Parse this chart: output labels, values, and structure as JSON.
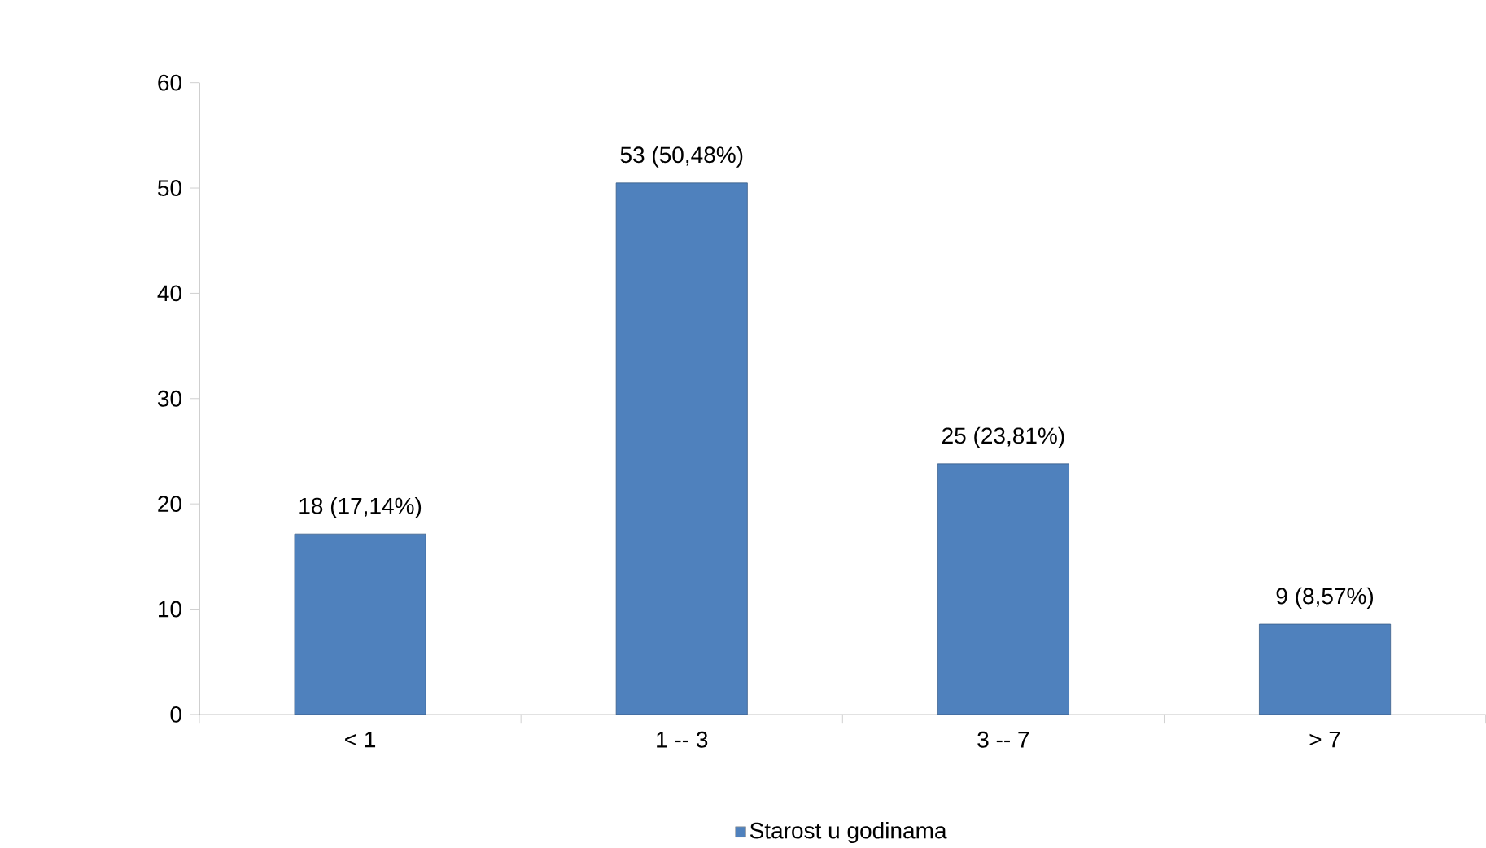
{
  "chart_data": {
    "type": "bar",
    "categories": [
      "< 1",
      "1 -- 3",
      "3 -- 7",
      "> 7"
    ],
    "series": [
      {
        "name": "Starost u godinama",
        "color": "#4f81bd",
        "values": [
          17.14,
          50.48,
          23.81,
          8.57
        ],
        "value_labels": [
          "18 (17,14%)",
          "53 (50,48%)",
          "25 (23,81%)",
          "9 (8,57%)"
        ]
      }
    ],
    "ylim": [
      0,
      60
    ],
    "yticks": [
      0,
      10,
      20,
      30,
      40,
      50,
      60
    ],
    "legend": "bottom"
  }
}
